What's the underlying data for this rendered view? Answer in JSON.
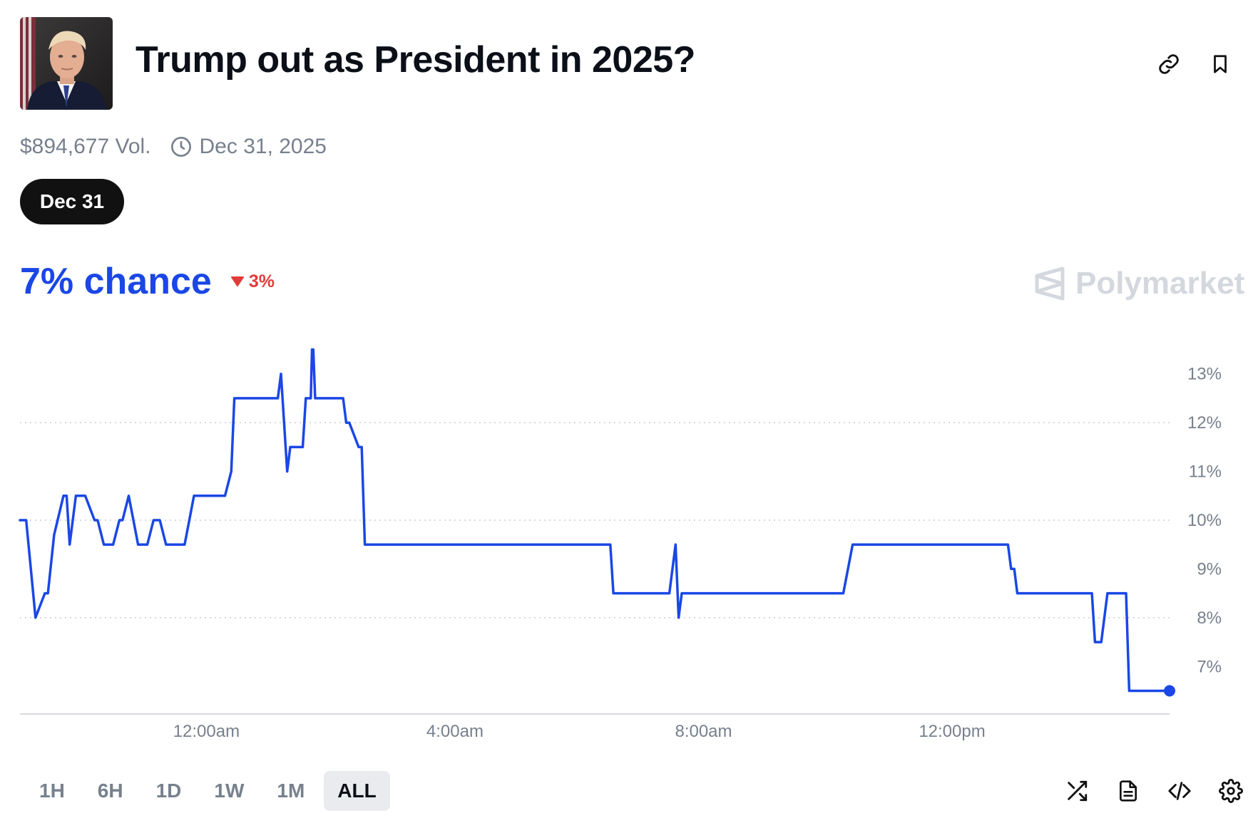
{
  "market": {
    "title": "Trump out as President in 2025?",
    "volume": "$894,677 Vol.",
    "end_date": "Dec 31, 2025",
    "date_pill": "Dec 31",
    "chance": "7% chance",
    "delta": "3%",
    "brand": "Polymarket"
  },
  "colors": {
    "accent": "#1a47e6",
    "negative": "#e23b3b",
    "muted": "#77808d",
    "pill": "#111111",
    "brand": "#d4d8de"
  },
  "icons": {
    "link": "link-icon",
    "bookmark": "bookmark-icon",
    "clock": "clock-icon",
    "delta": "triangle-down-icon",
    "brand": "polymarket-logo-icon",
    "shuffle": "shuffle-icon",
    "document": "document-icon",
    "embed": "code-icon",
    "settings": "gear-icon"
  },
  "range_buttons": [
    "1H",
    "6H",
    "1D",
    "1W",
    "1M",
    "ALL"
  ],
  "active_range": "ALL",
  "chart_data": {
    "type": "line",
    "y_unit": "%",
    "ylim": [
      6.2,
      13.8
    ],
    "y_ticks": [
      7,
      8,
      9,
      10,
      11,
      12,
      13
    ],
    "y_tick_labels": [
      "7%",
      "8%",
      "9%",
      "10%",
      "11%",
      "12%",
      "13%"
    ],
    "gridlines_at": [
      8,
      10,
      12
    ],
    "xlim_hours": [
      -3.0,
      15.5
    ],
    "x_ticks_hours": [
      0,
      4,
      8,
      12
    ],
    "x_tick_labels": [
      "12:00am",
      "4:00am",
      "8:00am",
      "12:00pm"
    ],
    "legend": "none",
    "series": [
      {
        "x": [
          -3.0,
          -2.9,
          -2.75,
          -2.6,
          -2.55,
          -2.45,
          -2.3,
          -2.25,
          -2.2,
          -2.1,
          -2.05,
          -1.95,
          -1.8,
          -1.75,
          -1.65,
          -1.5,
          -1.4,
          -1.35,
          -1.25,
          -1.1,
          -1.0,
          -0.95,
          -0.85,
          -0.75,
          -0.65,
          -0.55,
          -0.45,
          -0.35,
          -0.2,
          -0.1,
          -0.05,
          0.05,
          0.3,
          0.4,
          0.45,
          0.6,
          1.15,
          1.2,
          1.3,
          1.35,
          1.5,
          1.55,
          1.6,
          1.62,
          1.65,
          1.68,
          1.7,
          1.72,
          1.75,
          1.8,
          1.83,
          1.9,
          2.0,
          2.2,
          2.25,
          2.3,
          2.45,
          2.5,
          2.55,
          2.62,
          2.75,
          2.8,
          3.05,
          3.1,
          3.15,
          3.3,
          3.35,
          3.4,
          3.45,
          3.5,
          3.55,
          3.6,
          6.5,
          6.55,
          6.6,
          7.45,
          7.55,
          7.6,
          7.65,
          7.72,
          7.75,
          7.8,
          7.85,
          10.25,
          10.4,
          12.85,
          12.9,
          12.95,
          13.0,
          13.05,
          13.1,
          14.2,
          14.25,
          14.3,
          14.4,
          14.5,
          14.55,
          14.8,
          14.85,
          14.9,
          15.0,
          15.5
        ],
        "y": [
          10,
          10,
          8,
          8.5,
          8.5,
          9.7,
          10.5,
          10.5,
          9.5,
          10.5,
          10.5,
          10.5,
          10,
          10,
          9.5,
          9.5,
          10,
          10,
          10.5,
          9.5,
          9.5,
          9.5,
          10,
          10,
          9.5,
          9.5,
          9.5,
          9.5,
          10.5,
          10.5,
          10.5,
          10.5,
          10.5,
          11,
          12.5,
          12.5,
          12.5,
          13,
          11,
          11.5,
          11.5,
          11.5,
          12.5,
          12.5,
          12.5,
          12.5,
          13.5,
          13.5,
          12.5,
          12.5,
          12.5,
          12.5,
          12.5,
          12.5,
          12,
          12,
          11.5,
          11.5,
          9.5,
          9.5,
          9.5,
          9.5,
          9.5,
          9.5,
          9.5,
          9.5,
          9.5,
          9.5,
          9.5,
          9.5,
          9.5,
          9.5,
          9.5,
          8.5,
          8.5,
          8.5,
          9.5,
          8,
          8.5,
          8.5,
          8.5,
          8.5,
          8.5,
          8.5,
          9.5,
          9.5,
          9.5,
          9,
          9,
          8.5,
          8.5,
          8.5,
          8.5,
          7.5,
          7.5,
          8.5,
          8.5,
          8.5,
          6.5,
          6.5,
          6.5,
          6.5
        ]
      }
    ]
  }
}
